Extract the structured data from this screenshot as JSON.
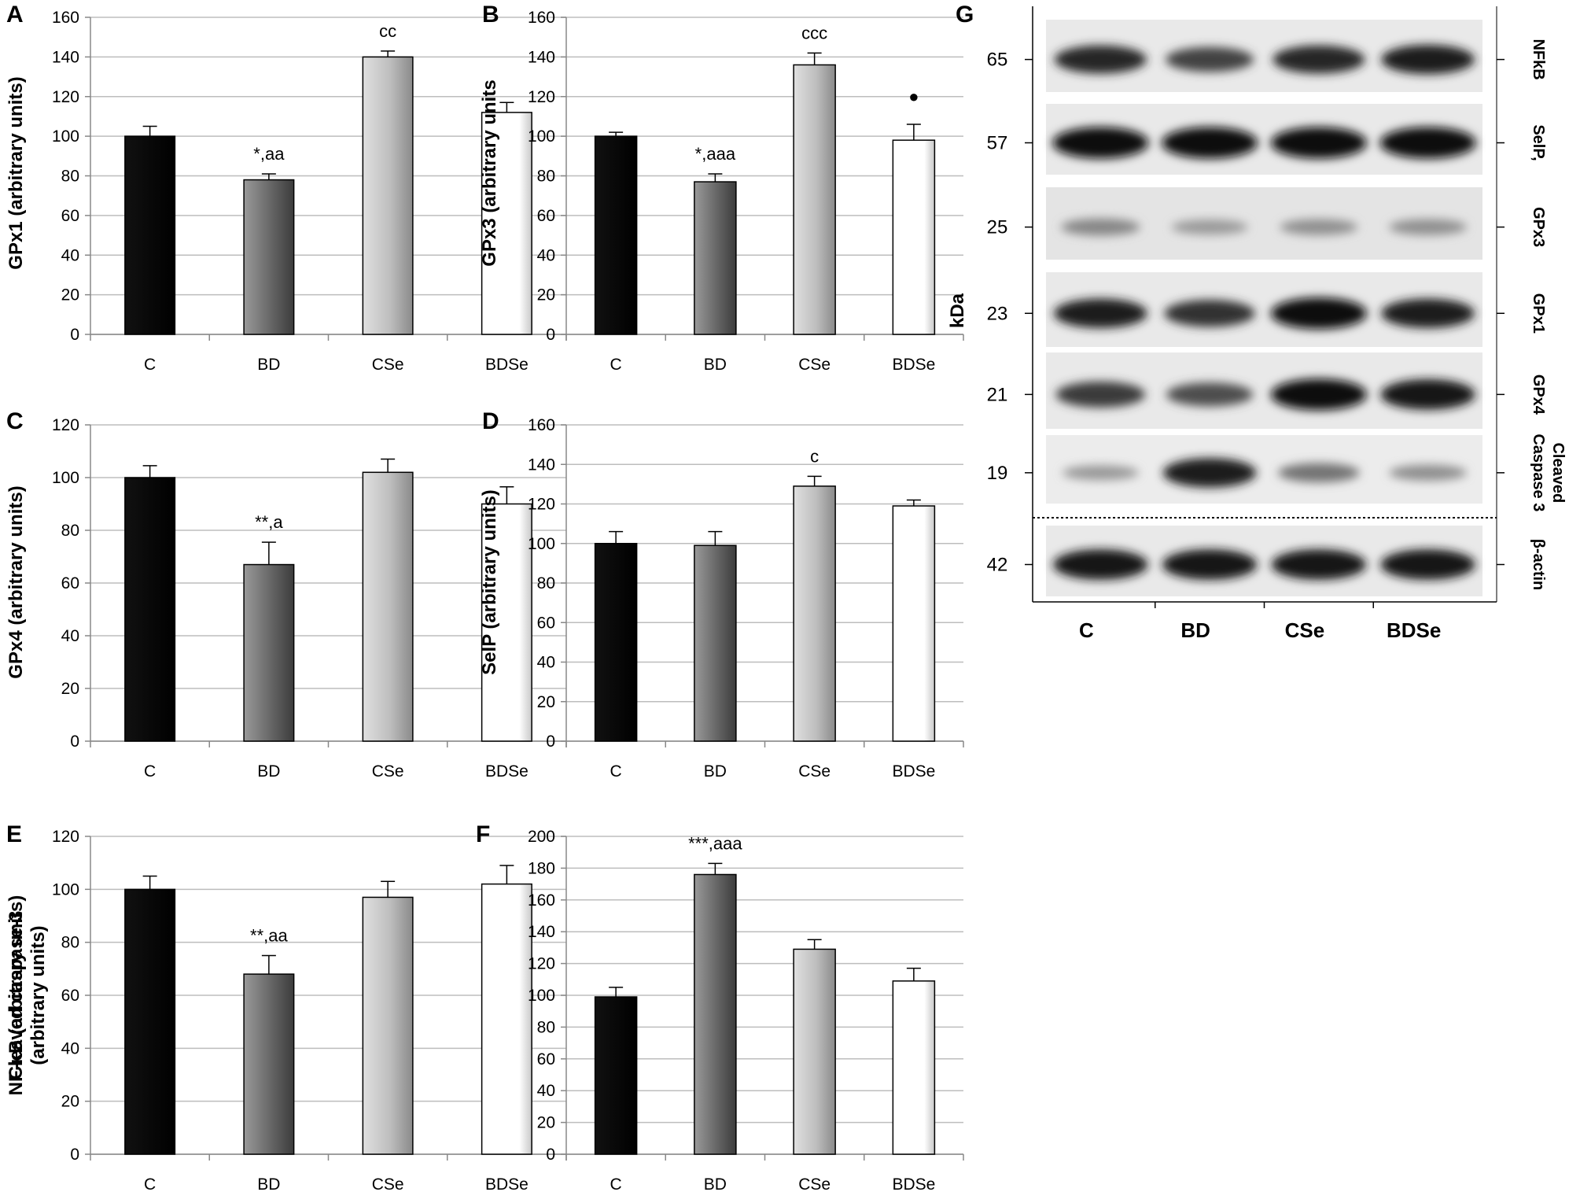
{
  "colors": {
    "C": "#000000",
    "BD": "#777777",
    "CSe": "#bbbbbb",
    "BDSe": "#ffffff",
    "grid": "#bdbdbd",
    "axis": "#888888"
  },
  "chart_data": [
    {
      "panel": "A",
      "type": "bar",
      "ylabel": "GPx1 (arbitrary units)",
      "categories": [
        "C",
        "BD",
        "CSe",
        "BDSe"
      ],
      "values": [
        100,
        78,
        140,
        112
      ],
      "errors": [
        5,
        3,
        3,
        5
      ],
      "annotations": [
        "",
        "*,aa",
        "cc",
        ""
      ],
      "ylim": [
        0,
        160
      ],
      "yticks": [
        0,
        20,
        40,
        60,
        80,
        100,
        120,
        140,
        160
      ],
      "grid": true
    },
    {
      "panel": "B",
      "type": "bar",
      "ylabel": "GPx3 (arbitrary units",
      "categories": [
        "C",
        "BD",
        "CSe",
        "BDSe"
      ],
      "values": [
        100,
        77,
        136,
        98
      ],
      "errors": [
        2,
        4,
        6,
        8
      ],
      "annotations": [
        "",
        "*,aaa",
        "ccc",
        "●"
      ],
      "ylim": [
        0,
        160
      ],
      "yticks": [
        0,
        20,
        40,
        60,
        80,
        100,
        120,
        140,
        160
      ],
      "grid": true
    },
    {
      "panel": "C",
      "type": "bar",
      "ylabel": "GPx4 (arbitrary units)",
      "categories": [
        "C",
        "BD",
        "CSe",
        "BDSe"
      ],
      "values": [
        100,
        67,
        102,
        90
      ],
      "errors": [
        4.5,
        8.5,
        5,
        6.5
      ],
      "annotations": [
        "",
        "**,a",
        "",
        ""
      ],
      "ylim": [
        0,
        120
      ],
      "yticks": [
        0,
        20,
        40,
        60,
        80,
        100,
        120
      ],
      "grid": true
    },
    {
      "panel": "D",
      "type": "bar",
      "ylabel": "SelP (arbitrary units)",
      "categories": [
        "C",
        "BD",
        "CSe",
        "BDSe"
      ],
      "values": [
        100,
        99,
        129,
        119
      ],
      "errors": [
        6,
        7,
        5,
        3
      ],
      "annotations": [
        "",
        "",
        "c",
        ""
      ],
      "ylim": [
        0,
        160
      ],
      "yticks": [
        0,
        20,
        40,
        60,
        80,
        100,
        120,
        140,
        160
      ],
      "grid": true
    },
    {
      "panel": "E",
      "type": "bar",
      "ylabel": "NF-κB  (arbitrary units)",
      "categories": [
        "C",
        "BD",
        "CSe",
        "BDSe"
      ],
      "values": [
        100,
        68,
        97,
        102
      ],
      "errors": [
        5,
        7,
        6,
        7
      ],
      "annotations": [
        "",
        "**,aa",
        "",
        ""
      ],
      "ylim": [
        0,
        120
      ],
      "yticks": [
        0,
        20,
        40,
        60,
        80,
        100,
        120
      ],
      "grid": true
    },
    {
      "panel": "F",
      "type": "bar",
      "ylabel": [
        "Cleaved caspase-3",
        "(arbitrary units)"
      ],
      "categories": [
        "C",
        "BD",
        "CSe",
        "BDSe"
      ],
      "values": [
        99,
        176,
        129,
        109
      ],
      "errors": [
        6,
        7,
        6,
        8
      ],
      "annotations": [
        "",
        "***,aaa",
        "",
        ""
      ],
      "ylim": [
        0,
        200
      ],
      "yticks": [
        0,
        20,
        40,
        60,
        80,
        100,
        120,
        140,
        160,
        180,
        200
      ],
      "grid": true
    }
  ],
  "blot": {
    "panel": "G",
    "axis_label": "kDa",
    "categories": [
      "C",
      "BD",
      "CSe",
      "BDSe"
    ],
    "rows": [
      {
        "kda": "65",
        "name": "NFkB",
        "intensity": [
          0.85,
          0.7,
          0.85,
          0.9
        ]
      },
      {
        "kda": "57",
        "name": "SelP,",
        "intensity": [
          1,
          1,
          1,
          1
        ]
      },
      {
        "kda": "25",
        "name": "GPx3",
        "intensity": [
          0.35,
          0.25,
          0.3,
          0.3
        ]
      },
      {
        "kda": "23",
        "name": "GPx1",
        "intensity": [
          0.9,
          0.8,
          1,
          0.9
        ]
      },
      {
        "kda": "21",
        "name": "GPx4",
        "intensity": [
          0.75,
          0.65,
          1,
          0.95
        ]
      },
      {
        "kda": "19",
        "name": "Cleaved Caspase 3",
        "intensity": [
          0.25,
          0.9,
          0.45,
          0.3
        ]
      },
      {
        "kda": "42",
        "name": "β-actin",
        "intensity": [
          0.95,
          0.95,
          0.95,
          0.95
        ]
      }
    ]
  }
}
